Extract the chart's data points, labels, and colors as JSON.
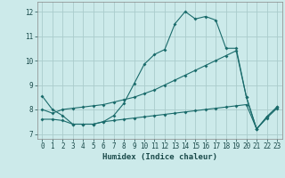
{
  "xlabel": "Humidex (Indice chaleur)",
  "background_color": "#cceaea",
  "grid_color": "#aacccc",
  "line_color": "#1a6b6b",
  "xlim": [
    -0.5,
    23.5
  ],
  "ylim": [
    6.8,
    12.4
  ],
  "yticks": [
    7,
    8,
    9,
    10,
    11,
    12
  ],
  "xticks": [
    0,
    1,
    2,
    3,
    4,
    5,
    6,
    7,
    8,
    9,
    10,
    11,
    12,
    13,
    14,
    15,
    16,
    17,
    18,
    19,
    20,
    21,
    22,
    23
  ],
  "line1_x": [
    0,
    1,
    2,
    3,
    4,
    5,
    6,
    7,
    8,
    9,
    10,
    11,
    12,
    13,
    14,
    15,
    16,
    17,
    18,
    19,
    20,
    21,
    22,
    23
  ],
  "line1_y": [
    8.55,
    8.0,
    7.75,
    7.4,
    7.4,
    7.4,
    7.5,
    7.75,
    8.25,
    9.05,
    9.85,
    10.25,
    10.45,
    11.5,
    12.0,
    11.7,
    11.8,
    11.65,
    10.5,
    10.5,
    8.5,
    7.2,
    7.7,
    8.1
  ],
  "line2_x": [
    0,
    1,
    2,
    3,
    4,
    5,
    6,
    7,
    8,
    9,
    10,
    11,
    12,
    13,
    14,
    15,
    16,
    17,
    18,
    19,
    20,
    21,
    22,
    23
  ],
  "line2_y": [
    8.0,
    7.85,
    8.0,
    8.05,
    8.1,
    8.15,
    8.2,
    8.3,
    8.4,
    8.5,
    8.65,
    8.8,
    9.0,
    9.2,
    9.4,
    9.6,
    9.8,
    10.0,
    10.2,
    10.4,
    8.5,
    7.2,
    7.7,
    8.1
  ],
  "line3_x": [
    0,
    1,
    2,
    3,
    4,
    5,
    6,
    7,
    8,
    9,
    10,
    11,
    12,
    13,
    14,
    15,
    16,
    17,
    18,
    19,
    20,
    21,
    22,
    23
  ],
  "line3_y": [
    7.6,
    7.6,
    7.55,
    7.4,
    7.4,
    7.4,
    7.5,
    7.55,
    7.6,
    7.65,
    7.7,
    7.75,
    7.8,
    7.85,
    7.9,
    7.95,
    8.0,
    8.05,
    8.1,
    8.15,
    8.2,
    7.2,
    7.65,
    8.05
  ]
}
